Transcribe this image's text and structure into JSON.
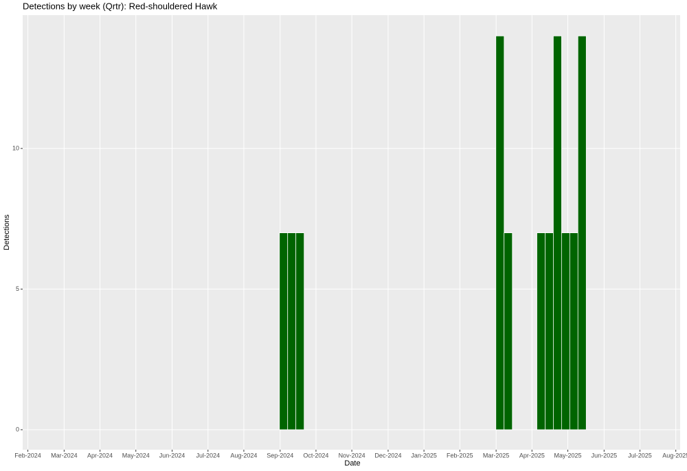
{
  "chart_data": {
    "type": "bar",
    "title": "Detections by week (Qrtr): Red-shouldered Hawk",
    "x_label": "Date",
    "y_label": "Detections",
    "color": "#006400",
    "grid": true,
    "x": [
      2024.675,
      2024.694,
      2024.713,
      2025.176,
      2025.195,
      2025.271,
      2025.29,
      2025.309,
      2025.328,
      2025.347,
      2025.366
    ],
    "values": [
      7,
      7,
      7,
      14,
      7,
      7,
      7,
      14,
      7,
      7,
      14
    ],
    "xlim": [
      2024.071,
      2025.593
    ],
    "xticks": [
      {
        "value": 2024.083,
        "label": "Feb-2024"
      },
      {
        "value": 2024.167,
        "label": "Mar-2024"
      },
      {
        "value": 2024.25,
        "label": "Apr-2024"
      },
      {
        "value": 2024.333,
        "label": "May-2024"
      },
      {
        "value": 2024.417,
        "label": "Jun-2024"
      },
      {
        "value": 2024.5,
        "label": "Jul-2024"
      },
      {
        "value": 2024.583,
        "label": "Aug-2024"
      },
      {
        "value": 2024.667,
        "label": "Sep-2024"
      },
      {
        "value": 2024.75,
        "label": "Oct-2024"
      },
      {
        "value": 2024.833,
        "label": "Nov-2024"
      },
      {
        "value": 2024.917,
        "label": "Dec-2024"
      },
      {
        "value": 2025.0,
        "label": "Jan-2025"
      },
      {
        "value": 2025.083,
        "label": "Feb-2025"
      },
      {
        "value": 2025.167,
        "label": "Mar-2025"
      },
      {
        "value": 2025.25,
        "label": "Apr-2025"
      },
      {
        "value": 2025.333,
        "label": "May-2025"
      },
      {
        "value": 2025.417,
        "label": "Jun-2025"
      },
      {
        "value": 2025.5,
        "label": "Jul-2025"
      },
      {
        "value": 2025.583,
        "label": "Aug-2025"
      }
    ],
    "ylim": [
      -0.71,
      14.74
    ],
    "yticks": [
      0,
      5,
      10
    ]
  }
}
